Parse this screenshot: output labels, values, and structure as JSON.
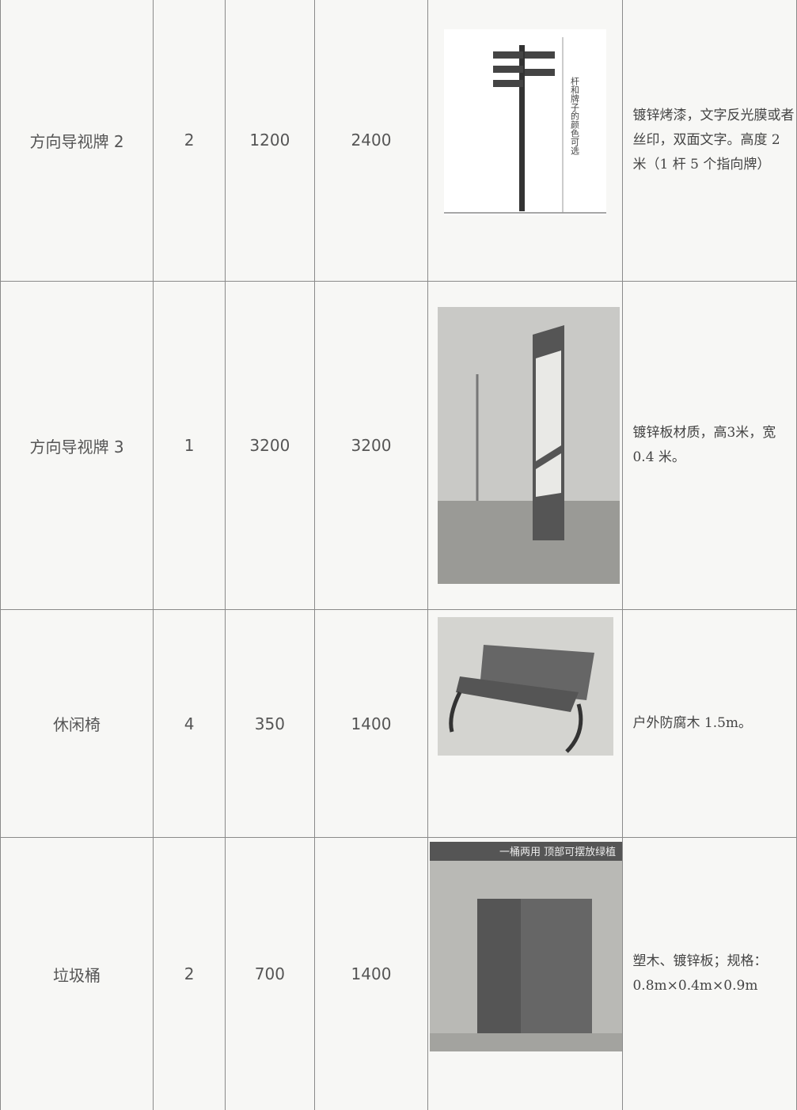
{
  "table": {
    "rows": [
      {
        "name": "方向导视牌 2",
        "quantity": "2",
        "unit_price": "1200",
        "total": "2400",
        "image_text": "杆和牌子的颜色可选",
        "description": "镀锌烤漆，文字反光膜或者丝印，双面文字。高度 2 米（1 杆 5 个指向牌）"
      },
      {
        "name": "方向导视牌 3",
        "quantity": "1",
        "unit_price": "3200",
        "total": "3200",
        "description": "镀锌板材质，高3米，宽 0.4 米。"
      },
      {
        "name": "休闲椅",
        "quantity": "4",
        "unit_price": "350",
        "total": "1400",
        "description": "户外防腐木 1.5m。"
      },
      {
        "name": "垃圾桶",
        "quantity": "2",
        "unit_price": "700",
        "total": "1400",
        "image_text": "一桶两用 顶部可摆放绿植",
        "description": "塑木、镀锌板；规格：0.8m×0.4m×0.9m"
      }
    ]
  }
}
